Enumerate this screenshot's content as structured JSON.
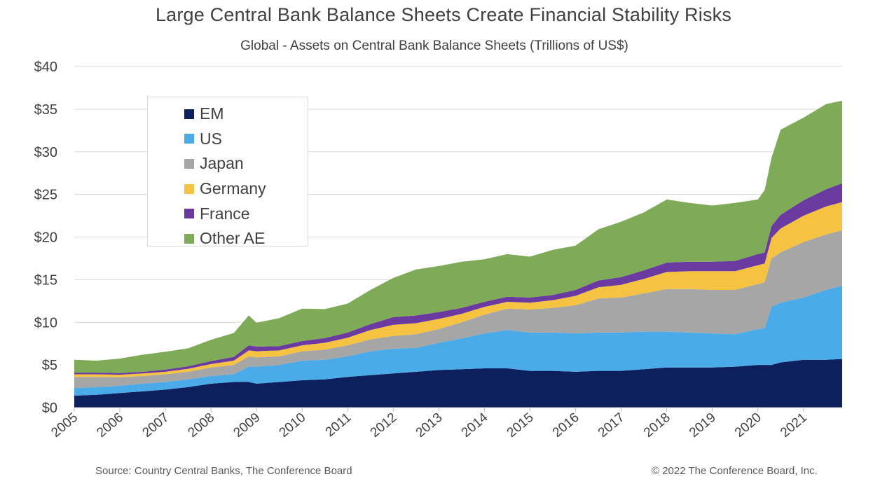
{
  "chart_data": {
    "type": "area",
    "stacked": true,
    "title": "Large Central Bank Balance Sheets Create Financial Stability Risks",
    "subtitle": "Global - Assets on Central Bank Balance Sheets (Trillions of US$)",
    "ylim": [
      0,
      40
    ],
    "yticks": [
      0,
      5,
      10,
      15,
      20,
      25,
      30,
      35,
      40
    ],
    "ytick_labels": [
      "$0",
      "$5",
      "$10",
      "$15",
      "$20",
      "$25",
      "$30",
      "$35",
      "$40"
    ],
    "xlim": [
      2005.0,
      2021.85
    ],
    "xticks": [
      2005,
      2006,
      2007,
      2008,
      2009,
      2010,
      2011,
      2012,
      2013,
      2014,
      2015,
      2016,
      2017,
      2018,
      2019,
      2020,
      2021
    ],
    "xtick_labels": [
      "2005",
      "2006",
      "2007",
      "2008",
      "2009",
      "2010",
      "2011",
      "2012",
      "2013",
      "2014",
      "2015",
      "2016",
      "2017",
      "2018",
      "2019",
      "2020",
      "2021"
    ],
    "grid": "horizontal",
    "legend_position": "top-left",
    "x": [
      2005.0,
      2005.5,
      2006.0,
      2006.5,
      2007.0,
      2007.5,
      2008.0,
      2008.5,
      2008.83,
      2009.0,
      2009.5,
      2010.0,
      2010.5,
      2011.0,
      2011.5,
      2012.0,
      2012.5,
      2013.0,
      2013.5,
      2014.0,
      2014.5,
      2015.0,
      2015.5,
      2016.0,
      2016.5,
      2017.0,
      2017.5,
      2018.0,
      2018.5,
      2019.0,
      2019.5,
      2020.0,
      2020.15,
      2020.3,
      2020.5,
      2021.0,
      2021.5,
      2021.85
    ],
    "series": [
      {
        "name": "EM",
        "color": "#0d1f5c",
        "values": [
          1.4,
          1.5,
          1.7,
          1.9,
          2.1,
          2.4,
          2.8,
          3.0,
          3.0,
          2.8,
          3.0,
          3.2,
          3.3,
          3.6,
          3.8,
          4.0,
          4.2,
          4.4,
          4.5,
          4.6,
          4.6,
          4.3,
          4.3,
          4.2,
          4.3,
          4.3,
          4.5,
          4.7,
          4.7,
          4.7,
          4.8,
          5.0,
          5.0,
          5.0,
          5.3,
          5.6,
          5.6,
          5.7
        ]
      },
      {
        "name": "US",
        "color": "#4aabe8",
        "values": [
          0.9,
          0.9,
          0.85,
          0.9,
          0.9,
          0.9,
          0.9,
          0.9,
          1.8,
          2.0,
          2.0,
          2.3,
          2.3,
          2.4,
          2.8,
          2.9,
          2.8,
          3.2,
          3.6,
          4.1,
          4.5,
          4.5,
          4.5,
          4.5,
          4.5,
          4.5,
          4.4,
          4.2,
          4.1,
          4.0,
          3.8,
          4.2,
          4.3,
          6.8,
          7.0,
          7.3,
          8.2,
          8.6
        ]
      },
      {
        "name": "Japan",
        "color": "#a6a6a6",
        "values": [
          1.3,
          1.2,
          1.0,
          0.9,
          0.9,
          0.9,
          1.0,
          1.1,
          1.2,
          1.1,
          1.0,
          1.1,
          1.2,
          1.3,
          1.4,
          1.5,
          1.6,
          1.6,
          1.9,
          2.2,
          2.5,
          2.7,
          2.9,
          3.3,
          4.0,
          4.1,
          4.5,
          5.0,
          5.1,
          5.1,
          5.2,
          5.3,
          5.4,
          5.7,
          5.9,
          6.5,
          6.5,
          6.5
        ]
      },
      {
        "name": "Germany",
        "color": "#f5c242",
        "values": [
          0.3,
          0.3,
          0.3,
          0.3,
          0.3,
          0.35,
          0.4,
          0.5,
          0.7,
          0.7,
          0.7,
          0.7,
          0.8,
          0.9,
          1.1,
          1.3,
          1.3,
          1.2,
          1.0,
          0.9,
          0.8,
          0.8,
          0.9,
          1.1,
          1.3,
          1.5,
          1.7,
          2.0,
          2.1,
          2.2,
          2.2,
          2.2,
          2.2,
          2.4,
          2.8,
          3.1,
          3.3,
          3.3
        ]
      },
      {
        "name": "France",
        "color": "#6a3aa0",
        "values": [
          0.2,
          0.2,
          0.2,
          0.2,
          0.25,
          0.3,
          0.35,
          0.45,
          0.6,
          0.55,
          0.5,
          0.5,
          0.55,
          0.6,
          0.7,
          0.9,
          0.9,
          0.8,
          0.7,
          0.6,
          0.6,
          0.6,
          0.6,
          0.7,
          0.8,
          0.9,
          1.0,
          1.1,
          1.1,
          1.1,
          1.2,
          1.3,
          1.3,
          1.4,
          1.6,
          1.8,
          2.0,
          2.2
        ]
      },
      {
        "name": "Other AE",
        "color": "#7fab58",
        "values": [
          1.5,
          1.4,
          1.7,
          2.0,
          2.1,
          2.1,
          2.5,
          2.8,
          3.5,
          2.8,
          3.3,
          3.8,
          3.4,
          3.4,
          4.0,
          4.6,
          5.4,
          5.4,
          5.4,
          5.0,
          5.0,
          4.8,
          5.3,
          5.2,
          6.0,
          6.5,
          6.8,
          7.4,
          6.9,
          6.6,
          6.8,
          6.4,
          7.3,
          8.0,
          10.0,
          9.7,
          10.0,
          9.7
        ]
      }
    ]
  },
  "footer": {
    "source": "Source: Country Central Banks, The Conference Board",
    "copyright": "© 2022 The Conference Board, Inc."
  }
}
